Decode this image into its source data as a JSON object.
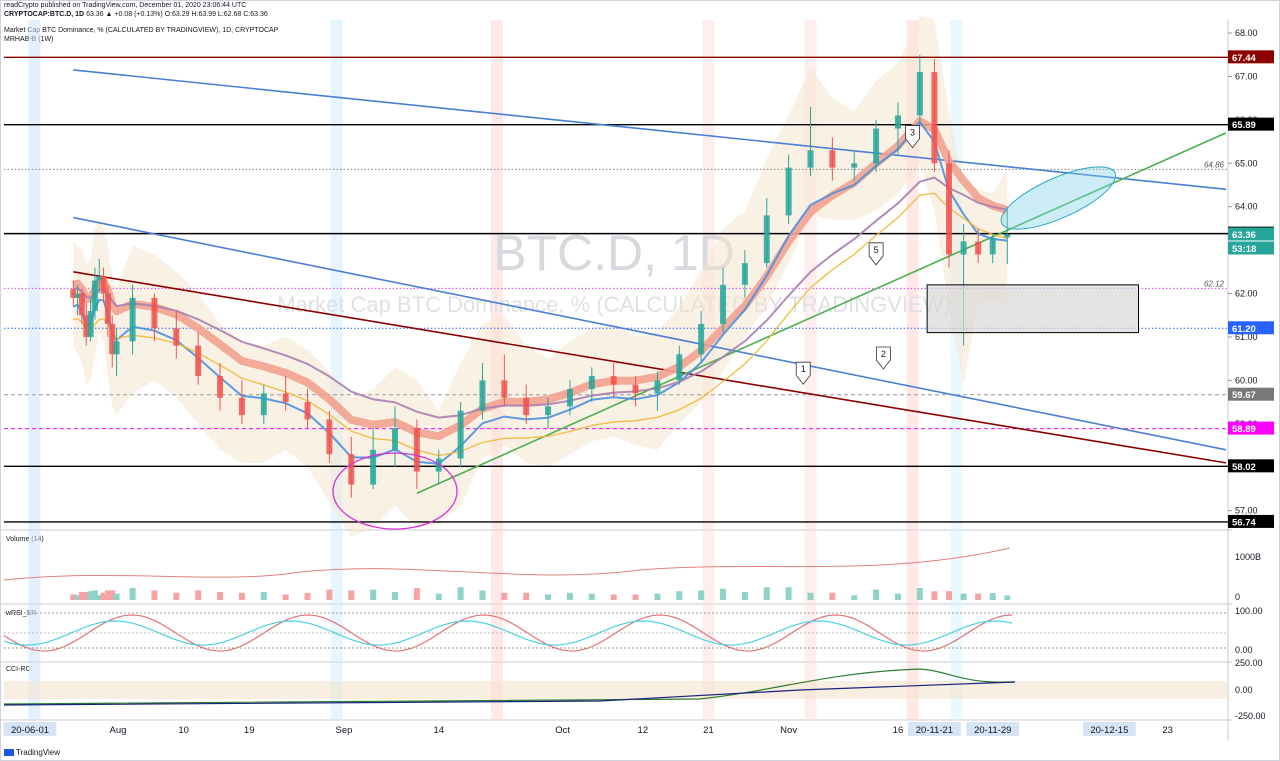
{
  "header": {
    "line1": "readCrypto published on TradingView.com, December 01, 2020 23:06:44 UTC",
    "line2_symbol": "CRYPTOCAP:BTC.D, 1D",
    "line2_ohlc": "63.36 ▲ +0.08 (+0.13%) O:63.29 H:63.99 L:62.68 C:63.36",
    "main_title": "Market Cap BTC Dominance, % (CALCULATED BY TRADINGVIEW), 1D, CRYPTOCAP",
    "indicator": "MRHAB-B (1W)"
  },
  "watermark": {
    "big": "BTC.D, 1D",
    "small": "Market Cap BTC Dominance, % (CALCULATED BY TRADINGVIEW)"
  },
  "footer": {
    "brand": "TradingView"
  },
  "chart_data": {
    "type": "candlestick",
    "title": "Market Cap BTC Dominance, % (CALCULATED BY TRADINGVIEW), 1D, CRYPTOCAP",
    "ylim": [
      56.6,
      68.3
    ],
    "price_ticks": [
      "68.00",
      "67.00",
      "66.00",
      "65.00",
      "64.00",
      "63.00",
      "62.00",
      "61.00",
      "60.00",
      "59.00",
      "58.00",
      "57.00"
    ],
    "x_labels": [
      {
        "label": "20-06-01",
        "date": "2020-06-01",
        "highlight": true
      },
      {
        "label": "Aug",
        "date": "2020-08-01"
      },
      {
        "label": "10",
        "date": "2020-08-10"
      },
      {
        "label": "19",
        "date": "2020-08-19"
      },
      {
        "label": "Sep",
        "date": "2020-09-01"
      },
      {
        "label": "14",
        "date": "2020-09-14"
      },
      {
        "label": "Oct",
        "date": "2020-10-01"
      },
      {
        "label": "12",
        "date": "2020-10-12"
      },
      {
        "label": "21",
        "date": "2020-10-21"
      },
      {
        "label": "Nov",
        "date": "2020-11-01"
      },
      {
        "label": "16",
        "date": "2020-11-16"
      },
      {
        "label": "20-11-21",
        "date": "2020-11-21",
        "highlight": true
      },
      {
        "label": "20-11-29",
        "date": "2020-11-29",
        "highlight": true
      },
      {
        "label": "20-12-15",
        "date": "2020-12-15",
        "highlight": true
      },
      {
        "label": "23",
        "date": "2020-12-23"
      }
    ],
    "horizontal_levels": [
      {
        "value": 67.44,
        "label": "67.44",
        "color": "#8b0000",
        "bg": "#8b0000",
        "style": "solid"
      },
      {
        "value": 65.89,
        "label": "65.89",
        "color": "#000000",
        "bg": "#000000",
        "style": "solid"
      },
      {
        "value": 64.86,
        "label": "64.86",
        "color": "#888888",
        "bg": "",
        "style": "dotted"
      },
      {
        "value": 63.38,
        "label": "63.38",
        "color": "#000000",
        "bg": "#000000",
        "style": "solid"
      },
      {
        "value": 62.12,
        "label": "62.12",
        "color": "#e040fb",
        "bg": "",
        "style": "dotted"
      },
      {
        "value": 61.2,
        "label": "61.20",
        "color": "#2962ff",
        "bg": "#2962ff",
        "style": "dotted"
      },
      {
        "value": 59.67,
        "label": "59.67",
        "color": "#999999",
        "bg": "#787878",
        "style": "dashed"
      },
      {
        "value": 58.89,
        "label": "58.89",
        "color": "#ff00ff",
        "bg": "#ff00ff",
        "style": "dashed"
      },
      {
        "value": 58.02,
        "label": "58.02",
        "color": "#000000",
        "bg": "#000000",
        "style": "solid"
      },
      {
        "value": 56.74,
        "label": "56.74",
        "color": "#000000",
        "bg": "#000000",
        "style": "solid"
      }
    ],
    "current_price": {
      "value": 63.36,
      "label": "63.36",
      "color": "#26a69a"
    },
    "countdown": {
      "label": "53:18",
      "color": "#26a69a"
    },
    "trendlines": [
      {
        "color": "#4a7fd6",
        "from": [
          "2020-07-01",
          67.15
        ],
        "to": [
          "2020-12-31",
          64.4
        ]
      },
      {
        "color": "#4a7fd6",
        "from": [
          "2020-07-01",
          63.75
        ],
        "to": [
          "2020-12-31",
          58.4
        ]
      },
      {
        "color": "#8b0000",
        "from": [
          "2020-07-01",
          62.5
        ],
        "to": [
          "2020-12-31",
          58.1
        ]
      },
      {
        "color": "#4caf50",
        "from": [
          "2020-09-11",
          57.4
        ],
        "to": [
          "2020-12-31",
          65.7
        ]
      }
    ],
    "wave_labels": [
      "1",
      "2",
      "3",
      "5"
    ],
    "candles": [
      {
        "d": "2020-07-01",
        "o": 62.1,
        "h": 62.3,
        "l": 61.7,
        "c": 61.9
      },
      {
        "d": "2020-07-04",
        "o": 61.9,
        "h": 62.2,
        "l": 61.5,
        "c": 62.0
      },
      {
        "d": "2020-07-07",
        "o": 62.0,
        "h": 62.1,
        "l": 61.3,
        "c": 61.5
      },
      {
        "d": "2020-07-10",
        "o": 61.5,
        "h": 61.8,
        "l": 60.8,
        "c": 61.0
      },
      {
        "d": "2020-07-13",
        "o": 61.0,
        "h": 61.9,
        "l": 60.9,
        "c": 61.6
      },
      {
        "d": "2020-07-16",
        "o": 61.6,
        "h": 62.6,
        "l": 61.4,
        "c": 62.3
      },
      {
        "d": "2020-07-19",
        "o": 62.3,
        "h": 62.8,
        "l": 62.0,
        "c": 62.4
      },
      {
        "d": "2020-07-22",
        "o": 62.4,
        "h": 62.6,
        "l": 61.8,
        "c": 62.0
      },
      {
        "d": "2020-07-25",
        "o": 62.0,
        "h": 62.2,
        "l": 61.0,
        "c": 61.3
      },
      {
        "d": "2020-07-28",
        "o": 61.3,
        "h": 61.5,
        "l": 60.3,
        "c": 60.6
      },
      {
        "d": "2020-07-31",
        "o": 60.6,
        "h": 61.2,
        "l": 60.1,
        "c": 60.9
      },
      {
        "d": "2020-08-03",
        "o": 60.9,
        "h": 62.2,
        "l": 60.6,
        "c": 61.9
      },
      {
        "d": "2020-08-06",
        "o": 61.9,
        "h": 62.0,
        "l": 60.9,
        "c": 61.2
      },
      {
        "d": "2020-08-09",
        "o": 61.2,
        "h": 61.6,
        "l": 60.5,
        "c": 60.8
      },
      {
        "d": "2020-08-12",
        "o": 60.8,
        "h": 61.1,
        "l": 59.9,
        "c": 60.1
      },
      {
        "d": "2020-08-15",
        "o": 60.1,
        "h": 60.4,
        "l": 59.3,
        "c": 59.6
      },
      {
        "d": "2020-08-18",
        "o": 59.6,
        "h": 60.0,
        "l": 59.0,
        "c": 59.2
      },
      {
        "d": "2020-08-21",
        "o": 59.2,
        "h": 59.9,
        "l": 59.0,
        "c": 59.7
      },
      {
        "d": "2020-08-24",
        "o": 59.7,
        "h": 60.1,
        "l": 59.3,
        "c": 59.5
      },
      {
        "d": "2020-08-27",
        "o": 59.5,
        "h": 59.8,
        "l": 58.9,
        "c": 59.1
      },
      {
        "d": "2020-08-30",
        "o": 59.1,
        "h": 59.3,
        "l": 58.1,
        "c": 58.3
      },
      {
        "d": "2020-09-02",
        "o": 58.3,
        "h": 58.7,
        "l": 57.3,
        "c": 57.6
      },
      {
        "d": "2020-09-05",
        "o": 57.6,
        "h": 58.9,
        "l": 57.5,
        "c": 58.4
      },
      {
        "d": "2020-09-08",
        "o": 58.4,
        "h": 59.4,
        "l": 58.0,
        "c": 58.9
      },
      {
        "d": "2020-09-11",
        "o": 58.9,
        "h": 59.1,
        "l": 57.5,
        "c": 57.9
      },
      {
        "d": "2020-09-14",
        "o": 57.9,
        "h": 58.4,
        "l": 57.6,
        "c": 58.2
      },
      {
        "d": "2020-09-17",
        "o": 58.2,
        "h": 59.5,
        "l": 58.0,
        "c": 59.3
      },
      {
        "d": "2020-09-20",
        "o": 59.3,
        "h": 60.4,
        "l": 59.1,
        "c": 60.0
      },
      {
        "d": "2020-09-23",
        "o": 60.0,
        "h": 60.6,
        "l": 59.4,
        "c": 59.6
      },
      {
        "d": "2020-09-26",
        "o": 59.6,
        "h": 59.9,
        "l": 59.0,
        "c": 59.2
      },
      {
        "d": "2020-09-29",
        "o": 59.2,
        "h": 59.6,
        "l": 58.9,
        "c": 59.4
      },
      {
        "d": "2020-10-02",
        "o": 59.4,
        "h": 60.0,
        "l": 59.2,
        "c": 59.8
      },
      {
        "d": "2020-10-05",
        "o": 59.8,
        "h": 60.3,
        "l": 59.5,
        "c": 60.1
      },
      {
        "d": "2020-10-08",
        "o": 60.1,
        "h": 60.4,
        "l": 59.6,
        "c": 59.9
      },
      {
        "d": "2020-10-11",
        "o": 59.9,
        "h": 60.1,
        "l": 59.4,
        "c": 59.7
      },
      {
        "d": "2020-10-14",
        "o": 59.7,
        "h": 60.2,
        "l": 59.3,
        "c": 60.0
      },
      {
        "d": "2020-10-17",
        "o": 60.0,
        "h": 60.8,
        "l": 59.9,
        "c": 60.6
      },
      {
        "d": "2020-10-20",
        "o": 60.6,
        "h": 61.6,
        "l": 60.4,
        "c": 61.3
      },
      {
        "d": "2020-10-23",
        "o": 61.3,
        "h": 62.6,
        "l": 61.1,
        "c": 62.2
      },
      {
        "d": "2020-10-26",
        "o": 62.2,
        "h": 63.0,
        "l": 61.9,
        "c": 62.7
      },
      {
        "d": "2020-10-29",
        "o": 62.7,
        "h": 64.2,
        "l": 62.6,
        "c": 63.8
      },
      {
        "d": "2020-11-01",
        "o": 63.8,
        "h": 65.2,
        "l": 63.6,
        "c": 64.9
      },
      {
        "d": "2020-11-04",
        "o": 64.9,
        "h": 66.3,
        "l": 64.7,
        "c": 65.3
      },
      {
        "d": "2020-11-07",
        "o": 65.3,
        "h": 65.6,
        "l": 64.6,
        "c": 64.9
      },
      {
        "d": "2020-11-10",
        "o": 64.9,
        "h": 65.3,
        "l": 64.6,
        "c": 65.0
      },
      {
        "d": "2020-11-13",
        "o": 65.0,
        "h": 66.0,
        "l": 64.8,
        "c": 65.8
      },
      {
        "d": "2020-11-16",
        "o": 65.8,
        "h": 66.4,
        "l": 65.2,
        "c": 66.1
      },
      {
        "d": "2020-11-19",
        "o": 66.1,
        "h": 67.5,
        "l": 65.9,
        "c": 67.1
      },
      {
        "d": "2020-11-21",
        "o": 67.1,
        "h": 67.4,
        "l": 64.8,
        "c": 65.0
      },
      {
        "d": "2020-11-23",
        "o": 65.0,
        "h": 65.3,
        "l": 62.6,
        "c": 62.9
      },
      {
        "d": "2020-11-25",
        "o": 62.9,
        "h": 63.6,
        "l": 60.8,
        "c": 63.2
      },
      {
        "d": "2020-11-27",
        "o": 63.2,
        "h": 63.5,
        "l": 62.7,
        "c": 62.9
      },
      {
        "d": "2020-11-29",
        "o": 62.9,
        "h": 63.4,
        "l": 62.7,
        "c": 63.28
      },
      {
        "d": "2020-12-01",
        "o": 63.29,
        "h": 63.99,
        "l": 62.68,
        "c": 63.36
      }
    ],
    "indicator_panes": [
      {
        "name": "Volume (14)",
        "ticks": [
          "1000B",
          "0"
        ]
      },
      {
        "name": "wRSI_SR",
        "ticks": [
          "100.00",
          "0.00"
        ]
      },
      {
        "name": "CCI-RC",
        "ticks": [
          "250.00",
          "0.00",
          "-250.00"
        ]
      }
    ]
  }
}
